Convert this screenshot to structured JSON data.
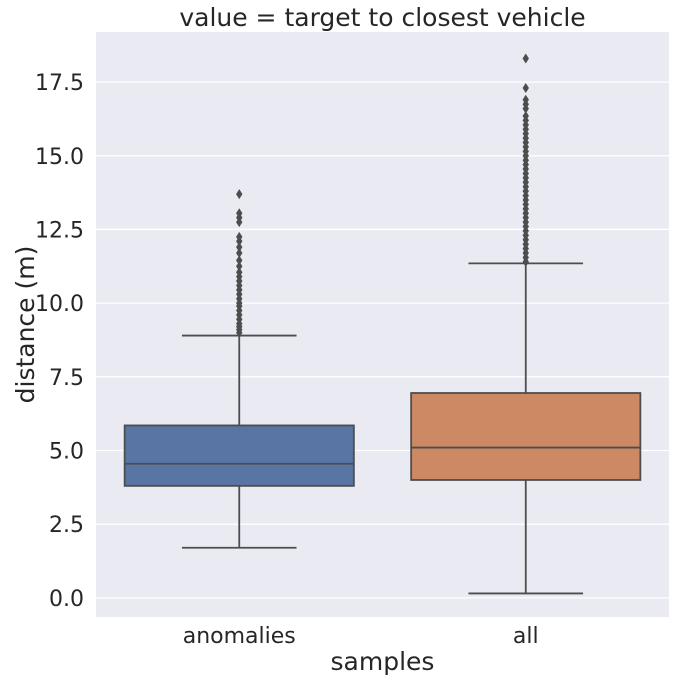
{
  "chart_data": {
    "type": "box",
    "title": "value = target to closest vehicle",
    "xlabel": "samples",
    "ylabel": "distance (m)",
    "ylim": [
      -0.65,
      19.2
    ],
    "yticks": [
      "0.0",
      "2.5",
      "5.0",
      "7.5",
      "10.0",
      "12.5",
      "15.0",
      "17.5"
    ],
    "grid": true,
    "categories": [
      "anomalies",
      "all"
    ],
    "boxes": [
      {
        "category": "anomalies",
        "color": "#5875a4",
        "whisker_low": 1.7,
        "q1": 3.8,
        "median": 4.55,
        "q3": 5.85,
        "whisker_high": 8.9,
        "outliers": [
          9.0,
          9.1,
          9.2,
          9.3,
          9.45,
          9.6,
          9.75,
          9.9,
          10.0,
          10.15,
          10.3,
          10.45,
          10.6,
          10.75,
          10.9,
          11.05,
          11.25,
          11.45,
          11.7,
          11.9,
          12.1,
          12.25,
          12.75,
          12.9,
          13.05,
          13.7
        ]
      },
      {
        "category": "all",
        "color": "#cc8963",
        "whisker_low": 0.15,
        "q1": 4.0,
        "median": 5.1,
        "q3": 6.95,
        "whisker_high": 11.35,
        "outliers": [
          11.4,
          11.55,
          11.7,
          11.85,
          12.0,
          12.15,
          12.3,
          12.45,
          12.6,
          12.75,
          12.9,
          13.05,
          13.2,
          13.35,
          13.5,
          13.65,
          13.8,
          13.95,
          14.1,
          14.25,
          14.4,
          14.55,
          14.7,
          14.85,
          15.0,
          15.15,
          15.3,
          15.45,
          15.6,
          15.75,
          15.9,
          16.05,
          16.2,
          16.35,
          16.6,
          16.75,
          16.9,
          17.3,
          18.3
        ]
      }
    ],
    "colors": {
      "plot_background": "#eaeaf2",
      "grid": "#ffffff",
      "line": "#4d4d4d",
      "text": "#262626"
    }
  }
}
